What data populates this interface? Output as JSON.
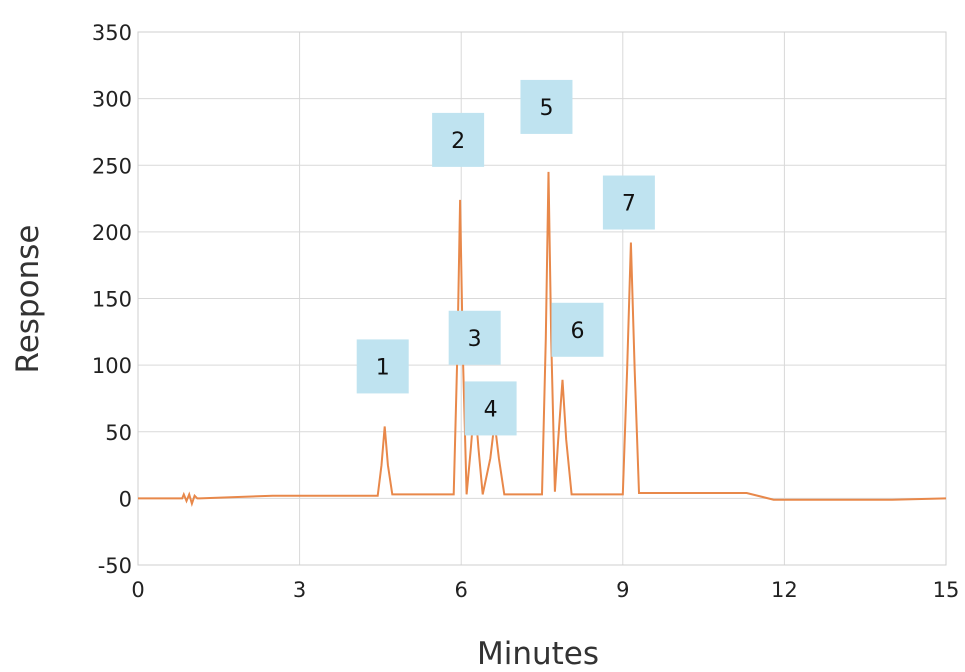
{
  "chart_data": {
    "type": "line",
    "xlabel": "Minutes",
    "ylabel": "Response",
    "xlim": [
      0,
      15
    ],
    "ylim": [
      -50,
      350
    ],
    "xticks": [
      0,
      3,
      6,
      9,
      12,
      15
    ],
    "yticks": [
      -50,
      0,
      50,
      100,
      150,
      200,
      250,
      300,
      350
    ],
    "grid": true,
    "line_color": "#e8884a",
    "label_box_color": "#bfe3f0",
    "peaks": [
      {
        "label": "1",
        "x": 4.58,
        "y": 54
      },
      {
        "label": "2",
        "x": 5.98,
        "y": 224
      },
      {
        "label": "3",
        "x": 6.25,
        "y": 74
      },
      {
        "label": "4",
        "x": 6.62,
        "y": 57
      },
      {
        "label": "5",
        "x": 7.62,
        "y": 245
      },
      {
        "label": "6",
        "x": 7.88,
        "y": 89
      },
      {
        "label": "7",
        "x": 9.15,
        "y": 192
      }
    ],
    "series": [
      {
        "x": [
          0,
          0.82,
          0.85,
          0.9,
          0.95,
          1.0,
          1.05,
          1.1,
          1.15,
          2.5,
          4.45,
          4.52,
          4.58,
          4.64,
          4.72,
          5.86,
          5.93,
          5.98,
          6.03,
          6.1,
          6.18,
          6.25,
          6.32,
          6.4,
          6.54,
          6.62,
          6.7,
          6.8,
          7.5,
          7.57,
          7.62,
          7.67,
          7.74,
          7.8,
          7.88,
          7.95,
          8.05,
          9.0,
          9.08,
          9.15,
          9.22,
          9.3,
          9.6,
          11.3,
          11.8,
          12.5,
          14.0,
          15.0
        ],
        "y": [
          0,
          0,
          3,
          -2,
          3,
          -4,
          2,
          0,
          0,
          2,
          2,
          25,
          54,
          25,
          3,
          3,
          110,
          224,
          110,
          3,
          38,
          74,
          38,
          3,
          30,
          57,
          30,
          3,
          3,
          120,
          245,
          120,
          5,
          44,
          89,
          44,
          3,
          3,
          96,
          192,
          96,
          4,
          4,
          4,
          -1,
          -1,
          -1,
          0
        ]
      }
    ]
  }
}
